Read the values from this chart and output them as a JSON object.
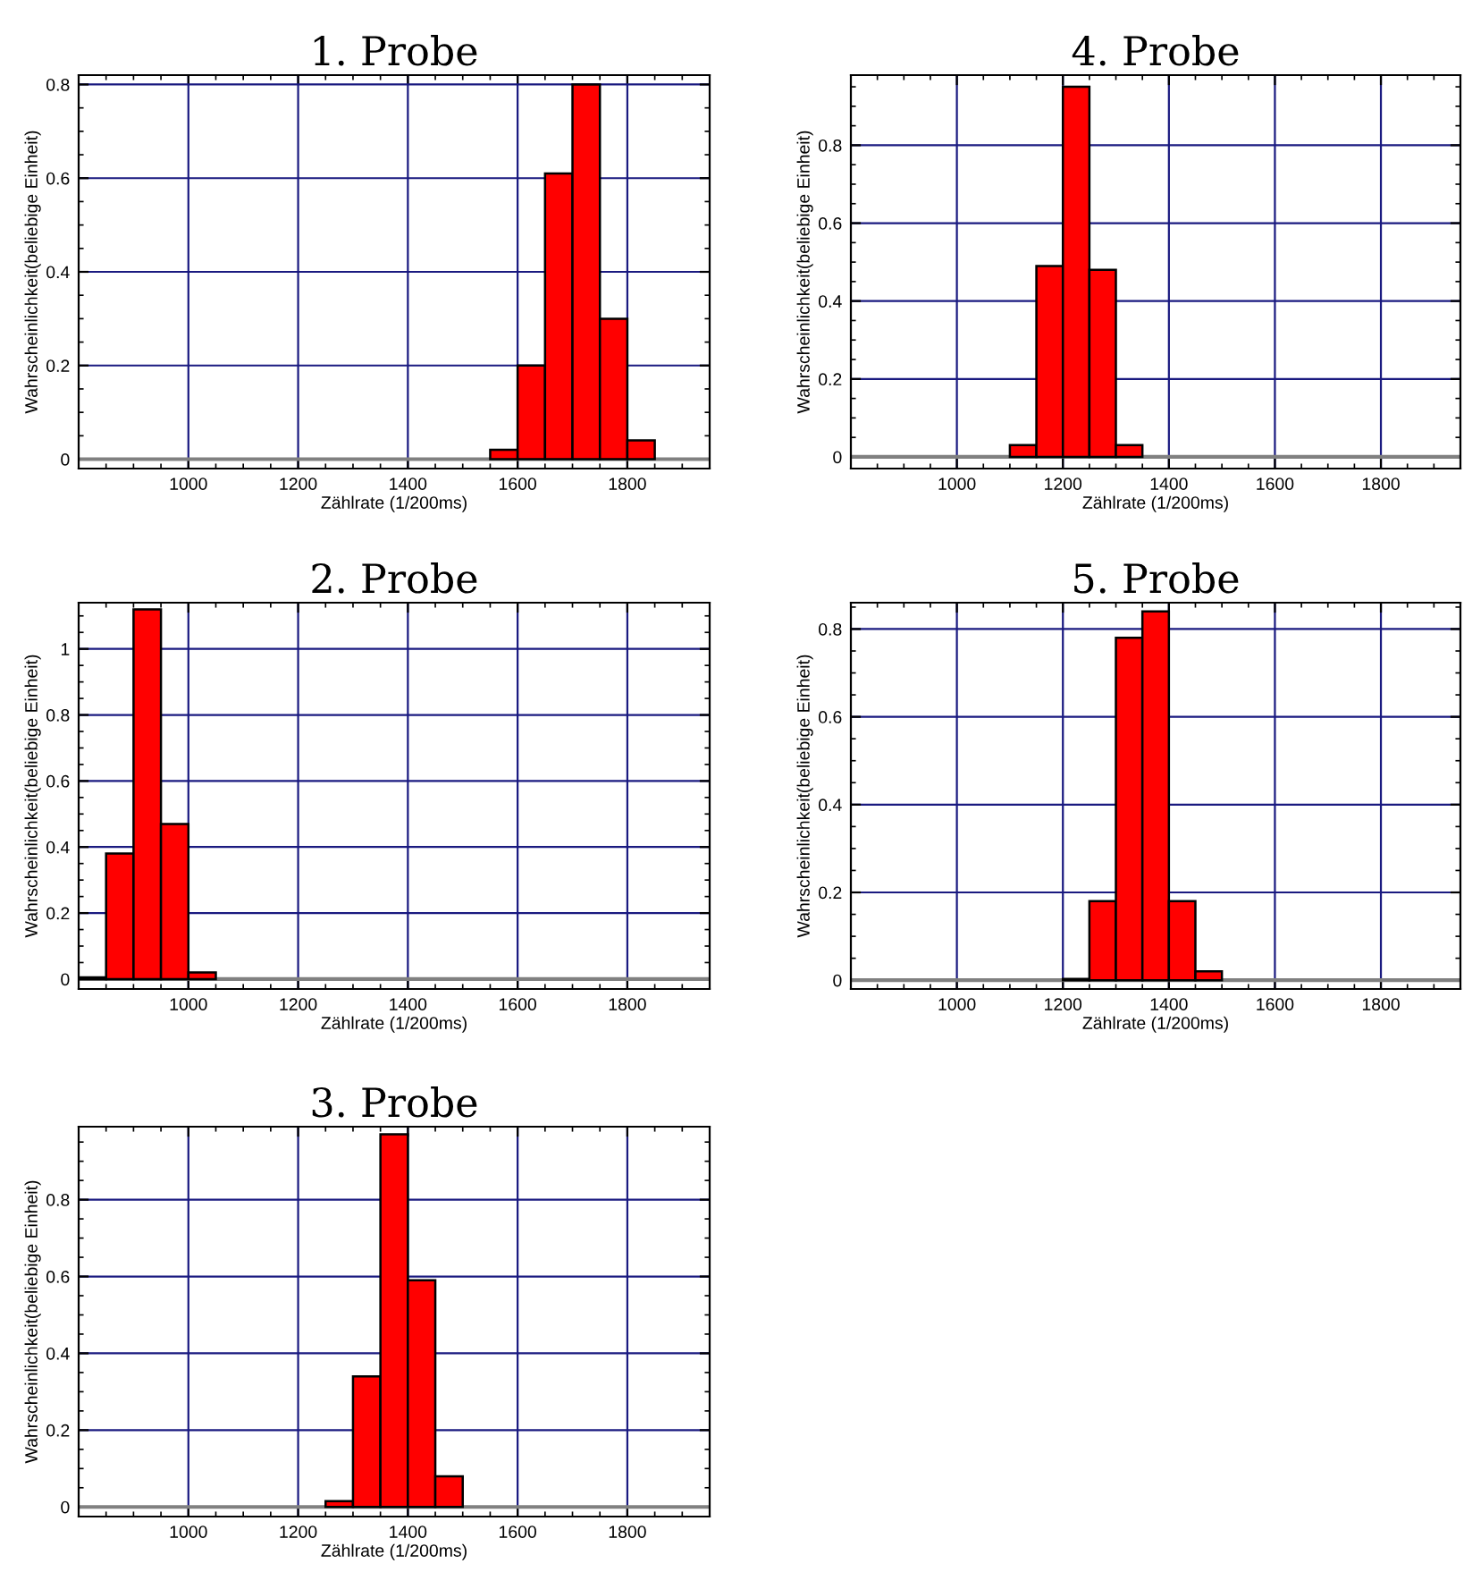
{
  "chart_data": [
    {
      "type": "histogram",
      "title": "1. Probe",
      "xlabel": "Zählrate (1/200ms)",
      "ylabel": "Wahrscheinlichkeit(beliebige Einheit)",
      "bins": [
        1550,
        1600,
        1650,
        1700,
        1750,
        1800,
        1850
      ],
      "values": [
        0.02,
        0.2,
        0.61,
        0.8,
        0.3,
        0.04
      ],
      "color": "#ff0000",
      "xlim": [
        800,
        1950
      ],
      "xticks": [
        1000,
        1200,
        1400,
        1600,
        1800
      ],
      "ylim": [
        -0.02,
        0.82
      ],
      "yticks": [
        0,
        0.2,
        0.4,
        0.6,
        0.8
      ],
      "grid": true,
      "ref_lines": [
        {
          "axis": "y",
          "value": 0,
          "color": "#808080"
        }
      ]
    },
    {
      "type": "histogram",
      "title": "4. Probe",
      "xlabel": "Zählrate (1/200ms)",
      "ylabel": "Wahrscheinlichkeit(beliebige Einheit)",
      "bins": [
        1100,
        1150,
        1200,
        1250,
        1300,
        1350
      ],
      "values": [
        0.03,
        0.49,
        0.95,
        0.48,
        0.03
      ],
      "color": "#ff0000",
      "xlim": [
        800,
        1950
      ],
      "xticks": [
        1000,
        1200,
        1400,
        1600,
        1800
      ],
      "ylim": [
        -0.03,
        0.98
      ],
      "yticks": [
        0,
        0.2,
        0.4,
        0.6,
        0.8
      ],
      "grid": true,
      "ref_lines": [
        {
          "axis": "y",
          "value": 0,
          "color": "#808080"
        }
      ]
    },
    {
      "type": "histogram",
      "title": "2. Probe",
      "xlabel": "Zählrate (1/200ms)",
      "ylabel": "Wahrscheinlichkeit(beliebige Einheit)",
      "bins": [
        800,
        850,
        900,
        950,
        1000,
        1050
      ],
      "values": [
        0.005,
        0.38,
        1.12,
        0.47,
        0.02
      ],
      "color": "#ff0000",
      "xlim": [
        800,
        1950
      ],
      "xticks": [
        1000,
        1200,
        1400,
        1600,
        1800
      ],
      "ylim": [
        -0.03,
        1.14
      ],
      "yticks": [
        0,
        0.2,
        0.4,
        0.6,
        0.8,
        1
      ],
      "grid": true,
      "ref_lines": [
        {
          "axis": "y",
          "value": 0,
          "color": "#808080"
        }
      ]
    },
    {
      "type": "histogram",
      "title": "5. Probe",
      "xlabel": "Zählrate (1/200ms)",
      "ylabel": "Wahrscheinlichkeit(beliebige Einheit)",
      "bins": [
        1200,
        1250,
        1300,
        1350,
        1400,
        1450,
        1500
      ],
      "values": [
        0.003,
        0.18,
        0.78,
        0.84,
        0.18,
        0.02
      ],
      "color": "#ff0000",
      "xlim": [
        800,
        1950
      ],
      "xticks": [
        1000,
        1200,
        1400,
        1600,
        1800
      ],
      "ylim": [
        -0.02,
        0.86
      ],
      "yticks": [
        0,
        0.2,
        0.4,
        0.6,
        0.8
      ],
      "grid": true,
      "ref_lines": [
        {
          "axis": "y",
          "value": 0,
          "color": "#808080"
        }
      ]
    },
    {
      "type": "histogram",
      "title": "3. Probe",
      "xlabel": "Zählrate (1/200ms)",
      "ylabel": "Wahrscheinlichkeit(beliebige Einheit)",
      "bins": [
        1250,
        1300,
        1350,
        1400,
        1450,
        1500
      ],
      "values": [
        0.015,
        0.34,
        0.97,
        0.59,
        0.08
      ],
      "color": "#ff0000",
      "xlim": [
        800,
        1950
      ],
      "xticks": [
        1000,
        1200,
        1400,
        1600,
        1800
      ],
      "ylim": [
        -0.025,
        0.99
      ],
      "yticks": [
        0,
        0.2,
        0.4,
        0.6,
        0.8
      ],
      "grid": true,
      "ref_lines": [
        {
          "axis": "y",
          "value": 0,
          "color": "#808080"
        }
      ]
    }
  ]
}
